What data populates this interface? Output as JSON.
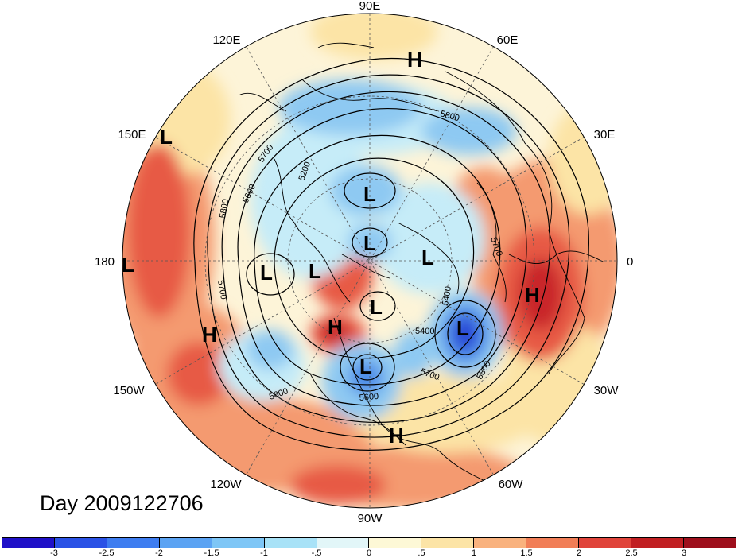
{
  "title": "Day 2009122706",
  "longitude_labels": [
    "90E",
    "60E",
    "30E",
    "0",
    "30W",
    "60W",
    "90W",
    "120W",
    "150W",
    "180",
    "150E",
    "120E"
  ],
  "pressure_centers": [
    {
      "type": "H"
    },
    {
      "type": "L"
    },
    {
      "type": "L"
    },
    {
      "type": "L"
    },
    {
      "type": "L"
    },
    {
      "type": "L"
    },
    {
      "type": "L"
    },
    {
      "type": "L"
    },
    {
      "type": "H"
    },
    {
      "type": "L"
    },
    {
      "type": "L"
    },
    {
      "type": "L"
    },
    {
      "type": "H"
    },
    {
      "type": "H"
    },
    {
      "type": "H"
    }
  ],
  "contour_labels": [
    "5800",
    "5700",
    "5600",
    "5800",
    "5700",
    "5200",
    "5700",
    "5400",
    "5400",
    "5800",
    "5700",
    "5600",
    "5800"
  ],
  "colorbar": {
    "tick_labels": [
      "-3",
      "-2.5",
      "-2",
      "-1.5",
      "-1",
      "-.5",
      "0",
      ".5",
      "1",
      "1.5",
      "2",
      "2.5",
      "3"
    ],
    "colors": [
      "#1f10c8",
      "#2a52e6",
      "#3e7df0",
      "#5ba3f3",
      "#7ec6f6",
      "#a8e2f7",
      "#e2f6f8",
      "#fdf8d6",
      "#fce4a6",
      "#f9b27e",
      "#f17e57",
      "#e0443a",
      "#c11f22",
      "#9e0f1c"
    ]
  },
  "anomaly_colors": {
    "neutral": "#fdf4d8",
    "weak_warm": "#fce4a6",
    "warm": "#f49a70",
    "strong_warm": "#e75a44",
    "very_warm": "#c9282b",
    "weak_cold": "#c6ecf8",
    "cold": "#8ec9f2",
    "strong_cold": "#4d8de8",
    "very_cold": "#2543d6"
  }
}
